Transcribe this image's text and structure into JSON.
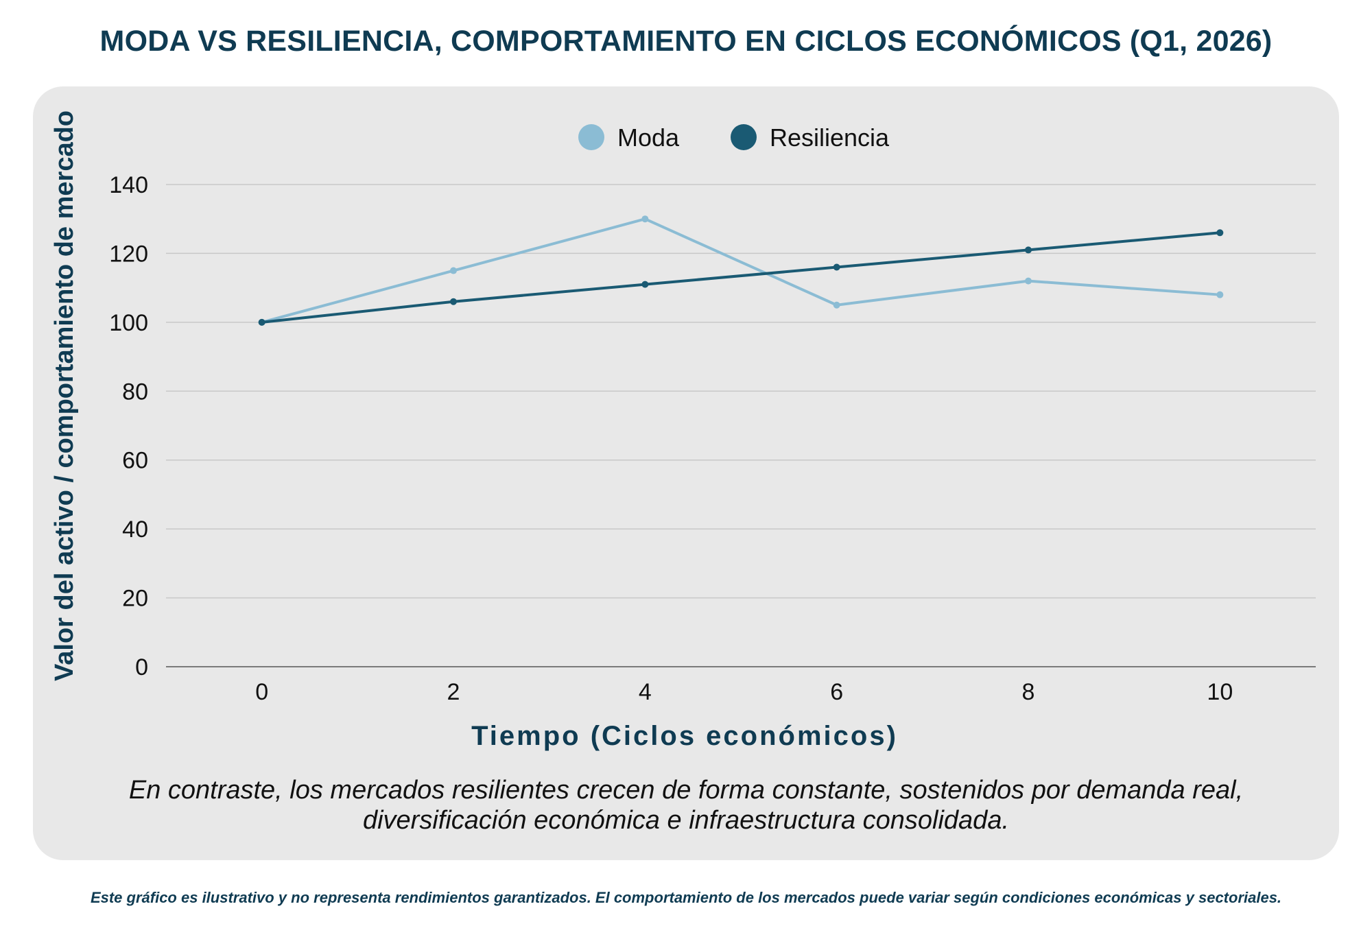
{
  "title": "MODA VS RESILIENCIA, COMPORTAMIENTO EN CICLOS ECONÓMICOS (Q1, 2026)",
  "caption": {
    "line1": "En contraste, los mercados resilientes crecen de forma constante, sostenidos por demanda real,",
    "line2": "diversificación económica e infraestructura consolidada."
  },
  "footnote": "Este gráfico es ilustrativo y no representa rendimientos garantizados. El comportamiento de los mercados puede variar según condiciones económicas y sectoriales.",
  "colors": {
    "moda": "#8bbcd4",
    "resiliencia": "#1a5a73",
    "panel": "#e8e8e8",
    "grid": "#c8c8c8",
    "title": "#0f3b52"
  },
  "chart_data": {
    "type": "line",
    "title": "MODA VS RESILIENCIA, COMPORTAMIENTO EN CICLOS ECONÓMICOS (Q1, 2026)",
    "xlabel": "Tiempo (Ciclos económicos)",
    "ylabel": "Valor del activo / comportamiento de mercado",
    "x": [
      0,
      2,
      4,
      6,
      8,
      10
    ],
    "x_ticks": [
      "0",
      "2",
      "4",
      "6",
      "8",
      "10"
    ],
    "y_ticks": [
      "0",
      "20",
      "40",
      "60",
      "80",
      "100",
      "120",
      "140"
    ],
    "xlim": [
      -1,
      11
    ],
    "ylim": [
      0,
      140
    ],
    "grid": true,
    "legend_position": "top-center",
    "series": [
      {
        "name": "Moda",
        "color": "#8bbcd4",
        "values": [
          100,
          115,
          130,
          105,
          112,
          108
        ]
      },
      {
        "name": "Resiliencia",
        "color": "#1a5a73",
        "values": [
          100,
          106,
          111,
          116,
          121,
          126
        ]
      }
    ]
  }
}
